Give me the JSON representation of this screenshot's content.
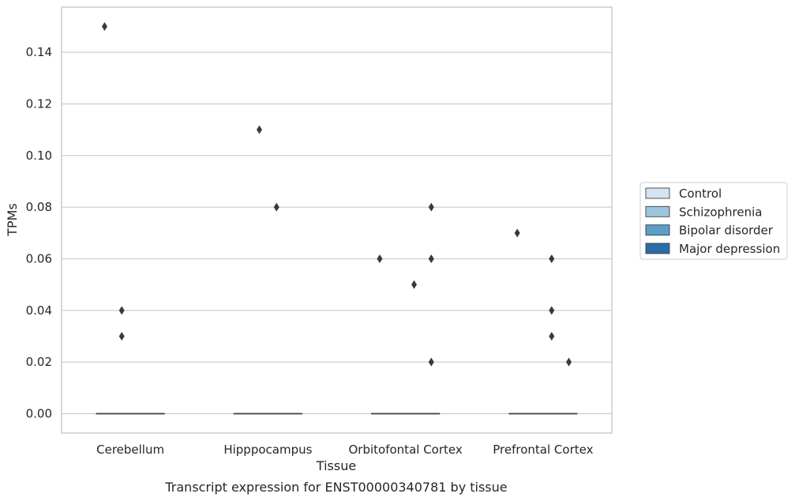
{
  "chart_data": {
    "type": "box",
    "title": "",
    "caption": "Transcript expression for ENST00000340781 by tissue",
    "xlabel": "Tissue",
    "ylabel": "TPMs",
    "categories": [
      "Cerebellum",
      "Hipppocampus",
      "Orbitofontal Cortex",
      "Prefrontal Cortex"
    ],
    "ylim": [
      -0.0075,
      0.1575
    ],
    "yticks": [
      0.0,
      0.02,
      0.04,
      0.06,
      0.08,
      0.1,
      0.12,
      0.14
    ],
    "ytick_labels": [
      "0.00",
      "0.02",
      "0.04",
      "0.06",
      "0.08",
      "0.10",
      "0.12",
      "0.14"
    ],
    "grid": true,
    "legend_position": "right",
    "series": [
      {
        "name": "Control",
        "color": "#d5e4f1",
        "median": [
          0,
          0,
          0,
          0
        ],
        "outliers": [
          [
            0.15
          ],
          [],
          [
            0.06
          ],
          [
            0.07
          ]
        ]
      },
      {
        "name": "Schizophrenia",
        "color": "#9cc5de",
        "median": [
          0,
          0,
          0,
          0
        ],
        "outliers": [
          [
            0.04,
            0.03
          ],
          [
            0.11
          ],
          [],
          []
        ]
      },
      {
        "name": "Bipolar disorder",
        "color": "#5a9ec9",
        "median": [
          0,
          0,
          0,
          0
        ],
        "outliers": [
          [],
          [
            0.08
          ],
          [
            0.05
          ],
          [
            0.06,
            0.04,
            0.03
          ]
        ]
      },
      {
        "name": "Major depression",
        "color": "#2b6ca9",
        "median": [
          0,
          0,
          0,
          0
        ],
        "outliers": [
          [],
          [],
          [
            0.08,
            0.06,
            0.02
          ],
          [
            0.02
          ]
        ]
      }
    ]
  }
}
